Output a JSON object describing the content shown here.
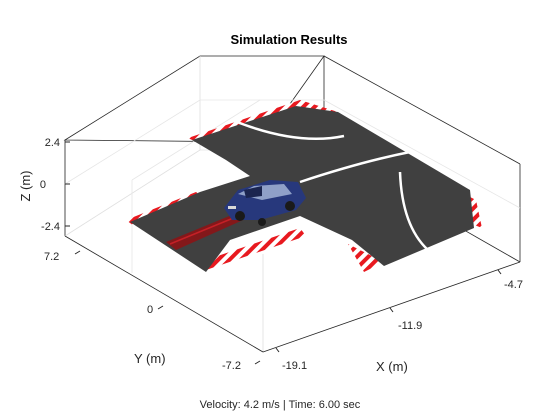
{
  "chart_data": {
    "type": "3d-scene",
    "title": "Simulation Results",
    "xlabel": "X (m)",
    "ylabel": "Y (m)",
    "zlabel": "Z (m)",
    "x_ticks": [
      "-19.1",
      "-11.9",
      "-4.7"
    ],
    "y_ticks": [
      "7.2",
      "0",
      "-7.2"
    ],
    "z_ticks": [
      "2.4",
      "0",
      "-2.4"
    ],
    "xlim": [
      -19.1,
      -4.7
    ],
    "ylim": [
      -7.2,
      7.2
    ],
    "zlim": [
      -2.4,
      2.4
    ],
    "grid": true,
    "vehicle": {
      "velocity_mps": 4.2,
      "time_s": 6.0
    }
  },
  "status": {
    "velocity_label": "Velocity:",
    "velocity_value": "4.2 m/s",
    "separator": "|",
    "time_label": "Time:",
    "time_value": "6.00 sec"
  },
  "colors": {
    "road": "#404040",
    "lane_mark": "#ffffff",
    "curb_red": "#e8191f",
    "trail": "#8b1416",
    "car_body": "#27387c",
    "axis": "#262626",
    "grid": "#e6e6e6"
  }
}
